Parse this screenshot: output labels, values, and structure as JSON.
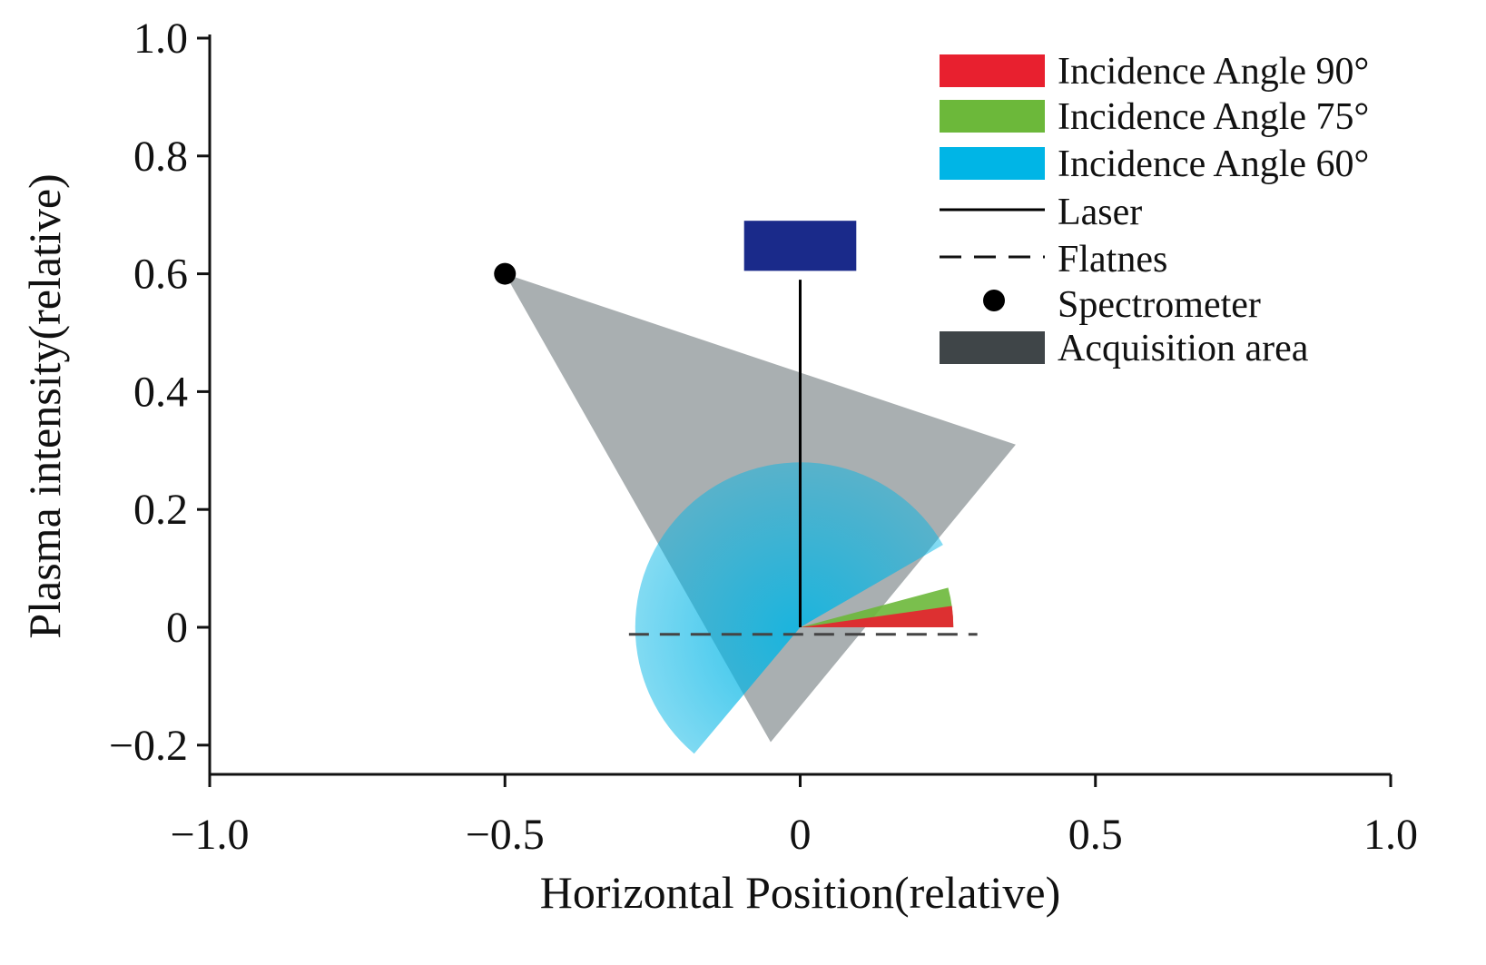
{
  "chart_data": {
    "type": "scatter",
    "title": "",
    "xlabel": "Horizontal Position(relative)",
    "ylabel": "Plasma intensity(relative)",
    "xlim": [
      -1.0,
      1.0
    ],
    "ylim": [
      -0.25,
      1.0
    ],
    "xticks": [
      -1.0,
      -0.5,
      0,
      0.5,
      1.0
    ],
    "xtick_labels": [
      "−1.0",
      "−0.5",
      "0",
      "0.5",
      "1.0"
    ],
    "yticks": [
      -0.2,
      0,
      0.2,
      0.4,
      0.6,
      0.8,
      1.0
    ],
    "ytick_labels": [
      "−0.2",
      "0",
      "0.2",
      "0.4",
      "0.6",
      "0.8",
      "1.0"
    ],
    "grid": false,
    "legend_position": "top-right",
    "colors": {
      "angle90": "#e8202f",
      "angle75": "#6cb83a",
      "angle60": "#00b5e6",
      "laser": "#000000",
      "flatness": "#444444",
      "spectrometer": "#000000",
      "acquisition": "#3f4548",
      "detector": "#1a2a8a"
    },
    "legend": [
      {
        "key": "angle90",
        "label": "Incidence Angle 90°",
        "marker": "swatch"
      },
      {
        "key": "angle75",
        "label": "Incidence Angle 75°",
        "marker": "swatch"
      },
      {
        "key": "angle60",
        "label": "Incidence Angle 60°",
        "marker": "swatch"
      },
      {
        "key": "laser",
        "label": "Laser",
        "marker": "line"
      },
      {
        "key": "flatness",
        "label": "Flatnes",
        "marker": "dash"
      },
      {
        "key": "spectrometer",
        "label": "Spectrometer",
        "marker": "dot"
      },
      {
        "key": "acquisition",
        "label": "Acquisition area",
        "marker": "swatch"
      }
    ],
    "series": [
      {
        "name": "Spectrometer",
        "type": "point",
        "x": -0.5,
        "y": 0.6
      },
      {
        "name": "Acquisition area",
        "type": "polygon",
        "points": [
          [
            -0.5,
            0.6
          ],
          [
            0.365,
            0.31
          ],
          [
            -0.05,
            -0.195
          ]
        ]
      },
      {
        "name": "Incidence Angle 60°",
        "type": "sector",
        "center": [
          0,
          0
        ],
        "radius": 0.28,
        "angle_from_deg": 30,
        "angle_to_deg": 230
      },
      {
        "name": "Incidence Angle 75°",
        "type": "sector",
        "center": [
          0,
          0
        ],
        "radius": 0.26,
        "angle_from_deg": 0,
        "angle_to_deg": 15
      },
      {
        "name": "Incidence Angle 90°",
        "type": "sector",
        "center": [
          0,
          0
        ],
        "radius": 0.26,
        "angle_from_deg": 0,
        "angle_to_deg": 8
      },
      {
        "name": "Laser",
        "type": "segment",
        "from": [
          0,
          0
        ],
        "to": [
          0,
          0.59
        ]
      },
      {
        "name": "Flatnes",
        "type": "segment",
        "from": [
          -0.29,
          -0.012
        ],
        "to": [
          0.3,
          -0.012
        ]
      },
      {
        "name": "detector",
        "type": "rect",
        "x_from": -0.095,
        "x_to": 0.095,
        "y_from": 0.605,
        "y_to": 0.69
      }
    ]
  }
}
